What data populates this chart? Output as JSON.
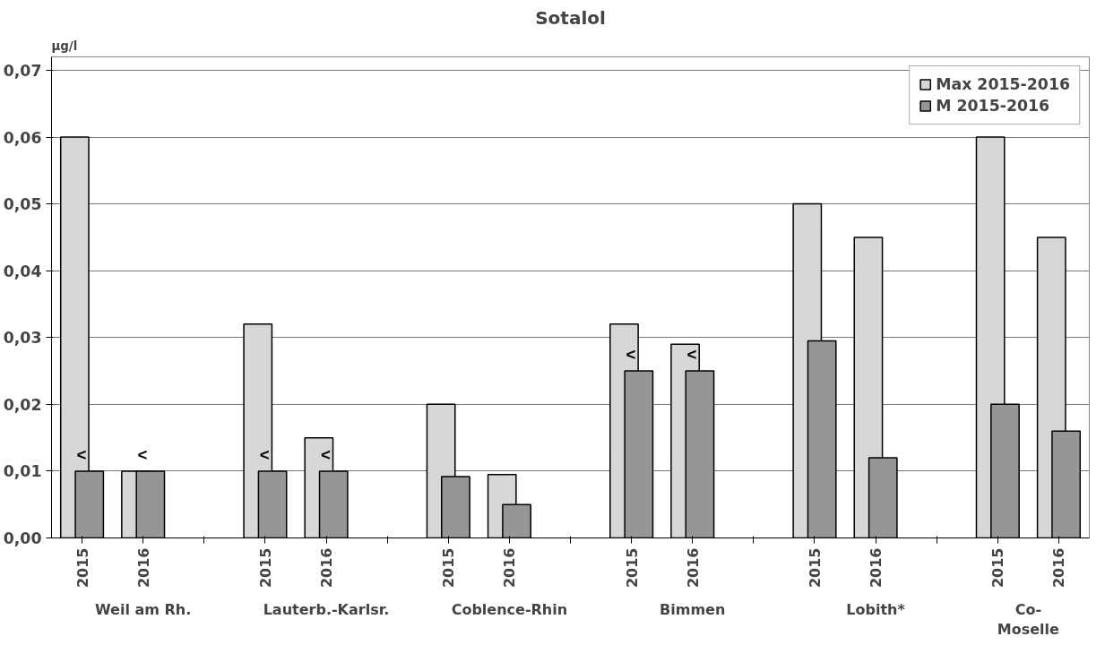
{
  "chart_data": {
    "type": "bar",
    "title": "Sotalol",
    "ylabel": "µg/l",
    "categories": [
      "2015",
      "2016",
      null,
      "2015",
      "2016",
      null,
      "2015",
      "2016",
      null,
      "2015",
      "2016",
      null,
      "2015",
      "2016",
      null,
      "2015",
      "2016"
    ],
    "series": [
      {
        "name": "Max 2015-2016",
        "color": "#d6d7d9",
        "values": [
          0.06,
          0.01,
          null,
          0.032,
          0.015,
          null,
          0.02,
          0.0095,
          null,
          0.032,
          0.029,
          null,
          0.05,
          0.045,
          null,
          0.06,
          0.045
        ]
      },
      {
        "name": "M 2015-2016",
        "color": "#969696",
        "values": [
          0.01,
          0.01,
          null,
          0.01,
          0.01,
          null,
          0.0092,
          0.005,
          null,
          0.025,
          0.025,
          null,
          0.0295,
          0.012,
          null,
          0.02,
          0.016
        ],
        "value_labels": [
          "<",
          "<",
          null,
          "<",
          "<",
          null,
          null,
          null,
          null,
          "<",
          "<",
          null,
          null,
          null,
          null,
          null,
          null
        ]
      }
    ],
    "annotations": [
      "Weil am Rh.",
      "Lauterb.-Karlsr.",
      "Coblence-Rhin",
      "Bimmen",
      "Lobith*",
      "Co-\nMoselle"
    ],
    "ylim": [
      0,
      0.072
    ],
    "yticks": [
      {
        "value": 0,
        "label": "0,00"
      },
      {
        "value": 0.01,
        "label": "0,01"
      },
      {
        "value": 0.02,
        "label": "0,02"
      },
      {
        "value": 0.03,
        "label": "0,03"
      },
      {
        "value": 0.04,
        "label": "0,04"
      },
      {
        "value": 0.05,
        "label": "0,05"
      },
      {
        "value": 0.06,
        "label": "0,06"
      },
      {
        "value": 0.07,
        "label": "0,07"
      }
    ],
    "grid": "y",
    "legend": "top right"
  }
}
